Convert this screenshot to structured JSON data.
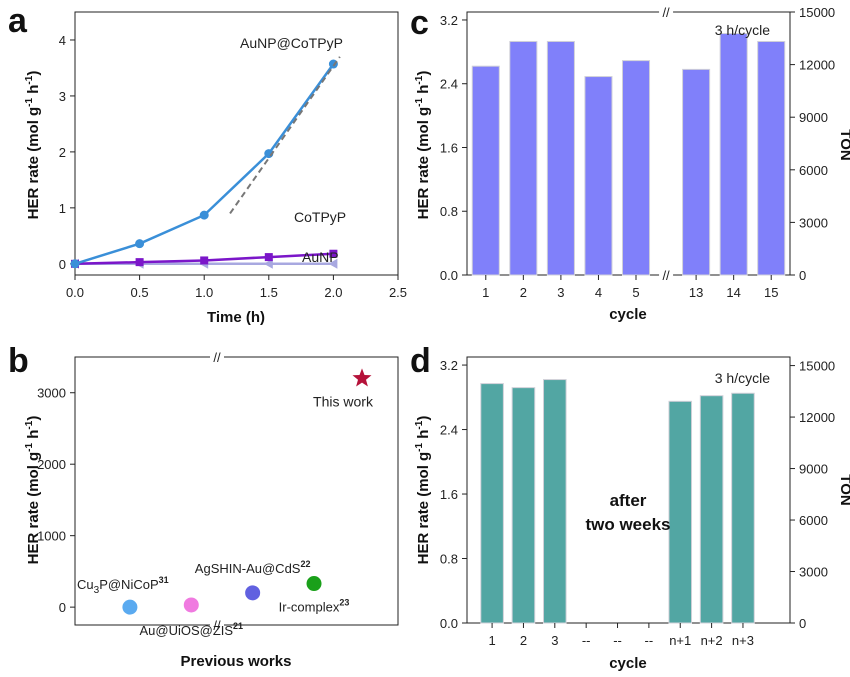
{
  "chart_data": [
    {
      "panel": "a",
      "type": "line",
      "xlabel": "Time (h)",
      "ylabel": "HER rate (mol g⁻¹ h⁻¹)",
      "xlim": [
        0,
        2.5
      ],
      "ylim": [
        -0.2,
        4.5
      ],
      "x_ticks": [
        "0.0",
        "0.5",
        "1.0",
        "1.5",
        "2.0",
        "2.5"
      ],
      "y_ticks": [
        "0",
        "1",
        "2",
        "3",
        "4"
      ],
      "series": [
        {
          "name": "AuNP@CoTPyP",
          "x": [
            0,
            0.5,
            1.0,
            1.5,
            2.0
          ],
          "values": [
            0,
            0.36,
            0.87,
            1.97,
            3.57
          ],
          "color": "#3a8fd8",
          "marker": "circle"
        },
        {
          "name": "CoTPyP",
          "x": [
            0,
            0.5,
            1.0,
            1.5,
            2.0
          ],
          "values": [
            0,
            0.03,
            0.06,
            0.12,
            0.18
          ],
          "color": "#7b16c9",
          "marker": "square"
        },
        {
          "name": "AuNP",
          "x": [
            0,
            0.5,
            1.0,
            1.5,
            2.0
          ],
          "values": [
            0,
            0.0,
            0.0,
            0.0,
            0.0
          ],
          "color": "#a8a8e0",
          "marker": "triangle-left"
        }
      ],
      "fit_line": {
        "x": [
          1.2,
          2.05
        ],
        "values": [
          0.9,
          3.7
        ],
        "color": "#777777"
      }
    },
    {
      "panel": "b",
      "type": "scatter",
      "xlabel": "Previous works",
      "ylabel": "HER rate (mol g⁻¹ h⁻¹)",
      "ylim": [
        -250,
        3500
      ],
      "y_ticks": [
        "0",
        "1000",
        "2000",
        "3000"
      ],
      "points": [
        {
          "label_main": "Cu",
          "label_sub": "3",
          "label_rest": "P@NiCoP",
          "ref": "31",
          "x": 0.17,
          "value": 0,
          "color": "#5aaaf0"
        },
        {
          "label_main": "",
          "label_sub": "",
          "label_rest": "Au@UiOS@ZIS",
          "ref": "21",
          "x": 0.36,
          "value": 30,
          "color": "#f07ae0"
        },
        {
          "label_main": "",
          "label_sub": "",
          "label_rest": "AgSHIN-Au@CdS",
          "ref": "22",
          "x": 0.55,
          "value": 200,
          "color": "#6161e0"
        },
        {
          "label_main": "",
          "label_sub": "",
          "label_rest": "Ir-complex",
          "ref": "23",
          "x": 0.74,
          "value": 330,
          "color": "#1aa01a"
        }
      ],
      "highlight": {
        "label": "This work",
        "value": 3200,
        "color": "#b5123a"
      }
    },
    {
      "panel": "c",
      "type": "bar",
      "xlabel": "cycle",
      "ylabel": "HER rate (mol g⁻¹ h⁻¹)",
      "y2label": "TON",
      "annotation": "3 h/cycle",
      "categories": [
        "1",
        "2",
        "3",
        "4",
        "5",
        "13",
        "14",
        "15"
      ],
      "values": [
        2.62,
        2.93,
        2.93,
        2.49,
        2.69,
        2.58,
        3.03,
        2.93
      ],
      "ylim": [
        0,
        3.3
      ],
      "y_ticks": [
        "0.0",
        "0.8",
        "1.6",
        "2.4",
        "3.2"
      ],
      "y2lim": [
        0,
        15000
      ],
      "y2_ticks": [
        "0",
        "3000",
        "6000",
        "9000",
        "12000",
        "15000"
      ],
      "color": "#8080fa"
    },
    {
      "panel": "d",
      "type": "bar",
      "xlabel": "cycle",
      "ylabel": "HER rate (mol g⁻¹ h⁻¹)",
      "y2label": "TON",
      "annotation": "3 h/cycle",
      "center_note": [
        "after",
        "two weeks"
      ],
      "categories": [
        "1",
        "2",
        "3",
        "--",
        "--",
        "--",
        "n+1",
        "n+2",
        "n+3"
      ],
      "values": [
        2.97,
        2.92,
        3.02,
        null,
        null,
        null,
        2.75,
        2.82,
        2.85
      ],
      "ylim": [
        0,
        3.3
      ],
      "y_ticks": [
        "0.0",
        "0.8",
        "1.6",
        "2.4",
        "3.2"
      ],
      "y2lim": [
        0,
        15500
      ],
      "y2_ticks": [
        "0",
        "3000",
        "6000",
        "9000",
        "12000",
        "15000"
      ],
      "color": "#52a6a3"
    }
  ],
  "panel_labels": [
    "a",
    "b",
    "c",
    "d"
  ],
  "axis_break_mark": "//"
}
